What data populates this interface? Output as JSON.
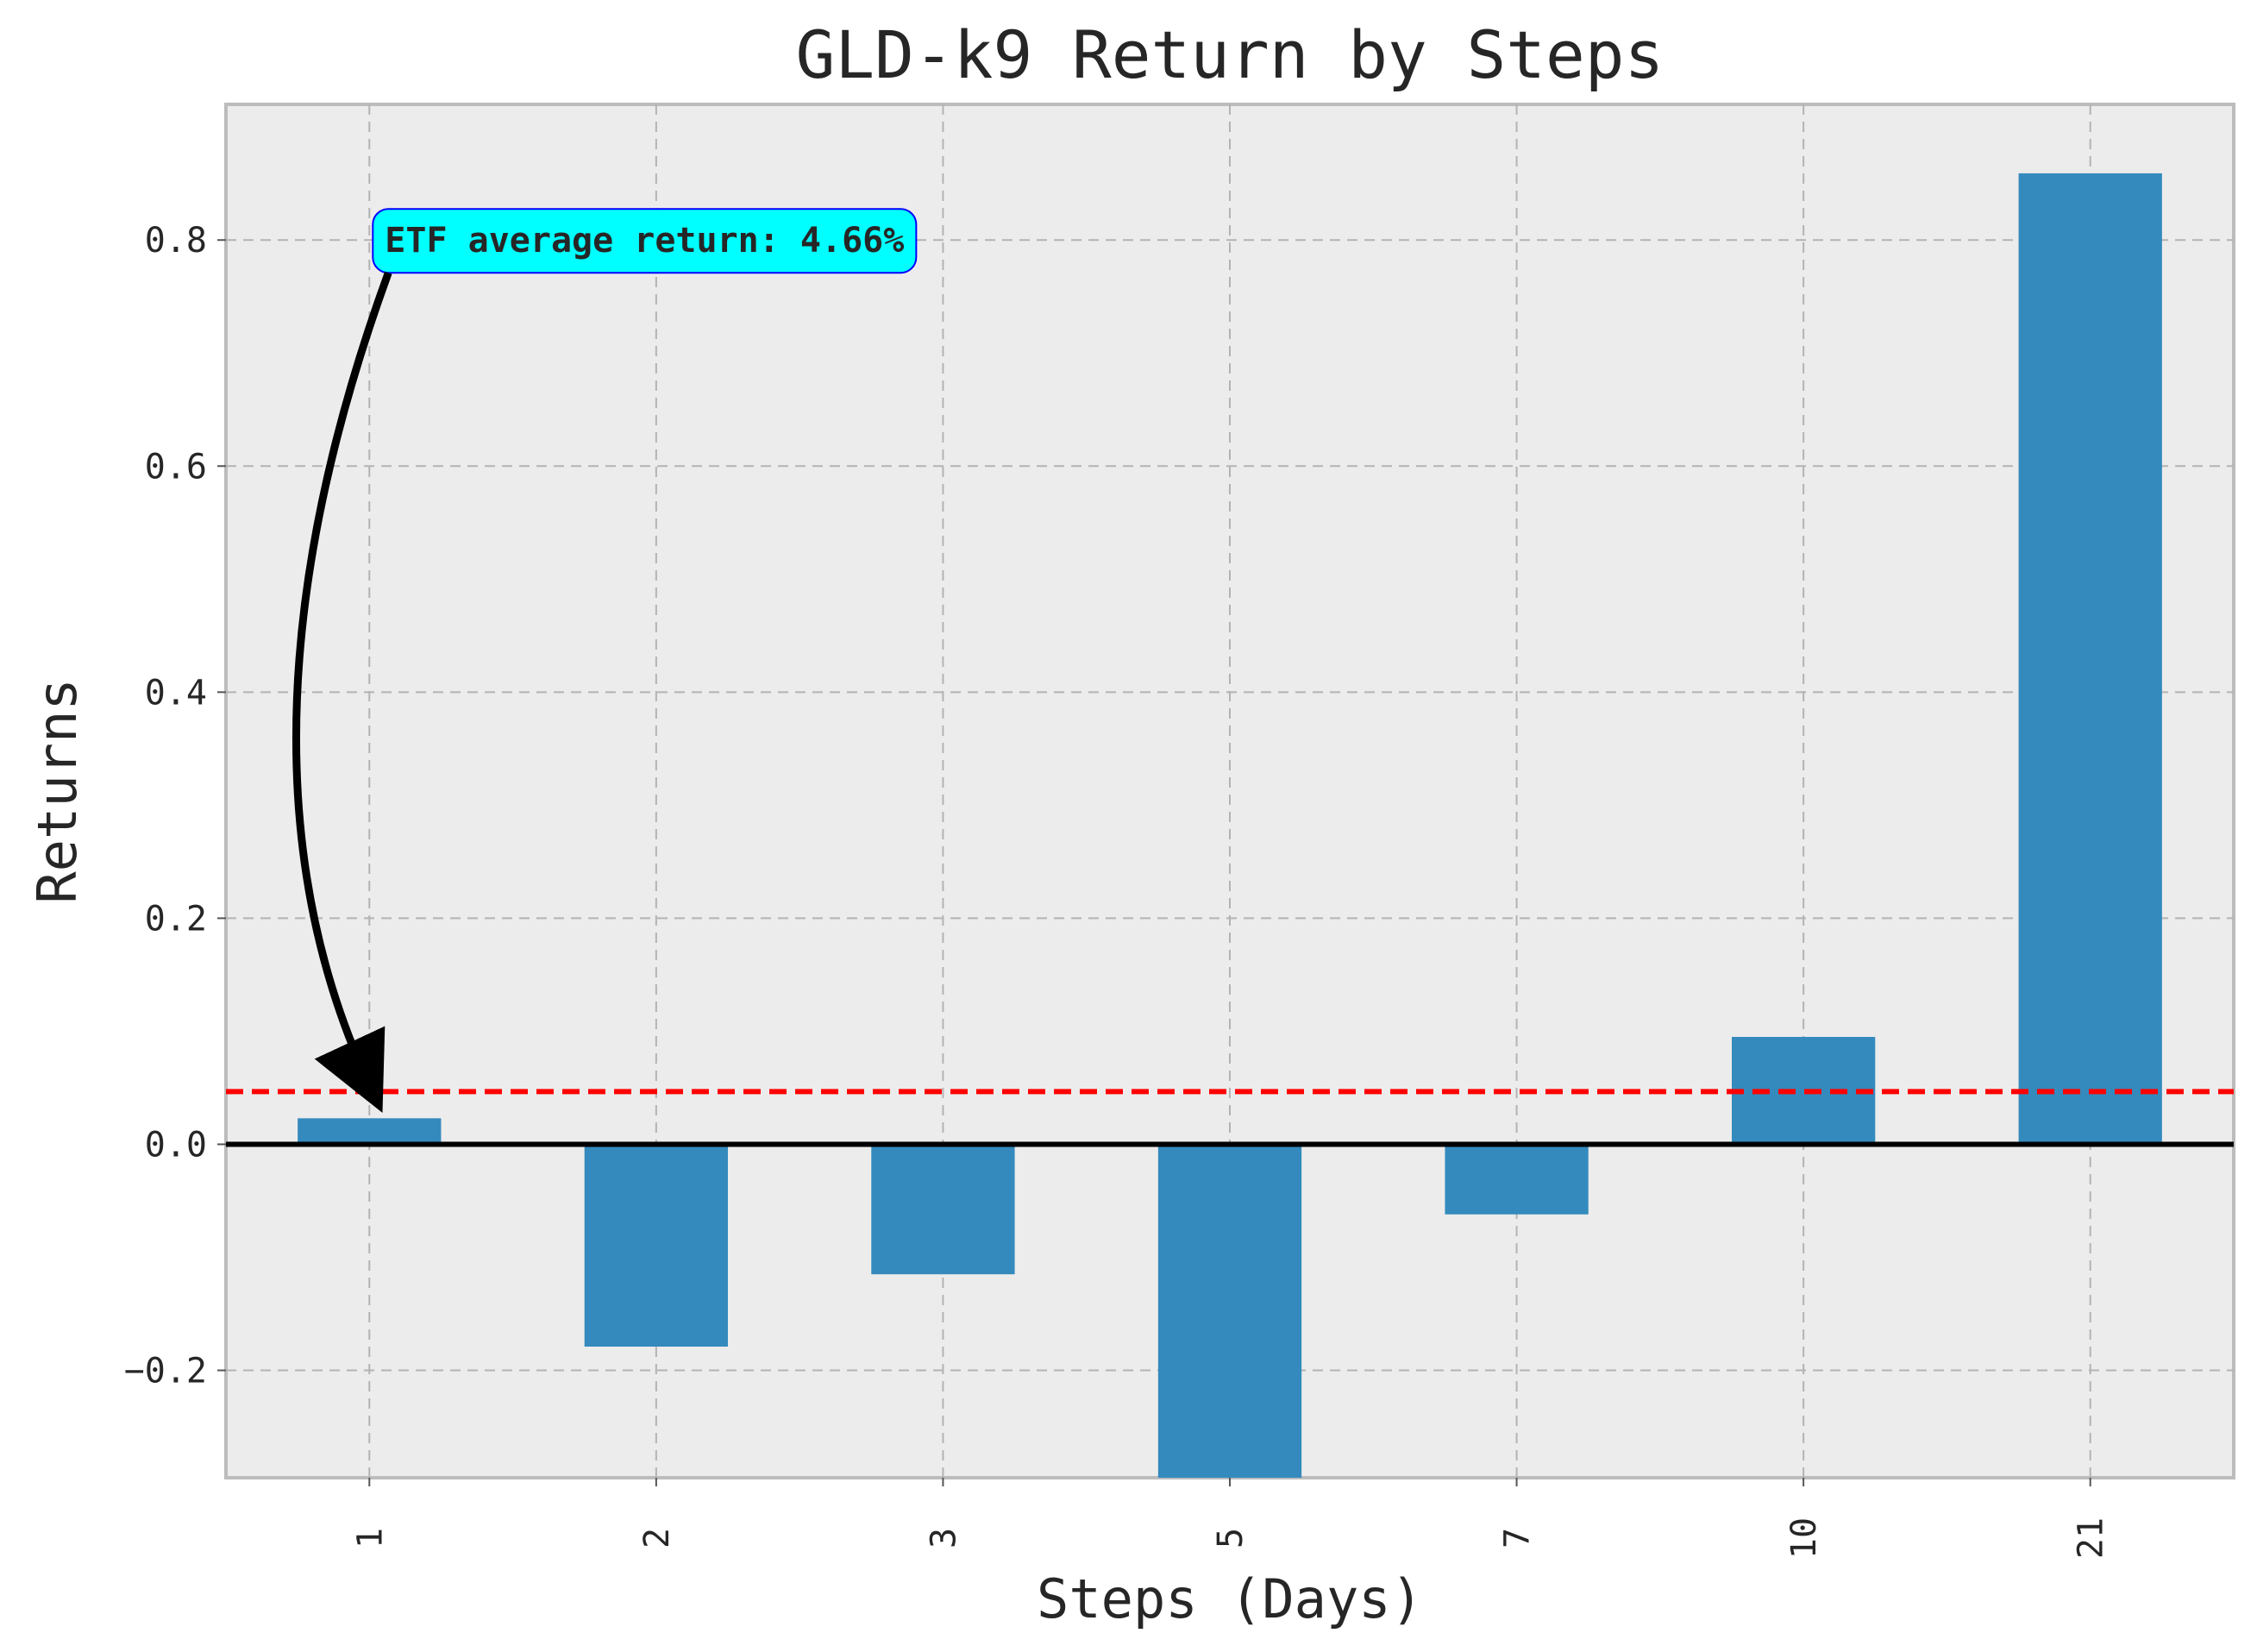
{
  "chart_data": {
    "type": "bar",
    "title": "GLD-k9 Return by Steps",
    "xlabel": "Steps (Days)",
    "ylabel": "Returns",
    "categories": [
      "1",
      "2",
      "3",
      "5",
      "7",
      "10",
      "21"
    ],
    "values": [
      0.023,
      -0.179,
      -0.115,
      -0.295,
      -0.062,
      0.095,
      0.859
    ],
    "ylim": [
      -0.295,
      0.92
    ],
    "yticks": [
      -0.2,
      0.0,
      0.2,
      0.4,
      0.6,
      0.8
    ],
    "ytick_labels": [
      "−0.2",
      "0.0",
      "0.2",
      "0.4",
      "0.6",
      "0.8"
    ],
    "reference_lines": [
      {
        "value": 0.0466,
        "color": "#ff0000",
        "style": "dashed"
      },
      {
        "value": 0.0,
        "color": "#000000",
        "style": "solid"
      }
    ],
    "annotation": {
      "text": "ETF average return: 4.66%",
      "points_to_category": "1",
      "points_to_value": 0.0466,
      "box_color": "#00ffff",
      "border_color": "#0000ff"
    },
    "grid": true,
    "bar_color": "#348abd",
    "background_color": "#ececec"
  }
}
